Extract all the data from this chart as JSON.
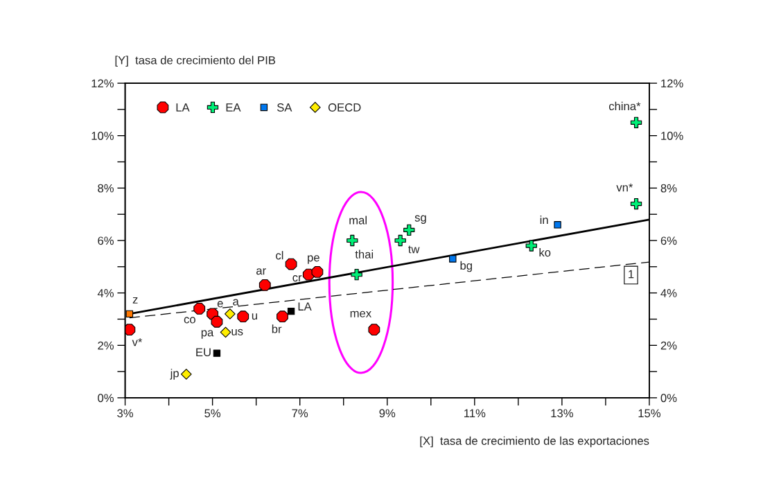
{
  "chart_data": {
    "type": "scatter",
    "xlabel": "[X]  tasa de crecimiento de las exportaciones",
    "ylabel": "[Y]  tasa de crecimiento del PIB",
    "xlim": [
      3,
      15
    ],
    "ylim": [
      0,
      12
    ],
    "y2lim": [
      0,
      12
    ],
    "xticks": [
      {
        "value": 3,
        "label": "3%"
      },
      {
        "value": 4,
        "label": null
      },
      {
        "value": 5,
        "label": "5%"
      },
      {
        "value": 6,
        "label": null
      },
      {
        "value": 7,
        "label": "7%"
      },
      {
        "value": 8,
        "label": null
      },
      {
        "value": 9,
        "label": "9%"
      },
      {
        "value": 10,
        "label": null
      },
      {
        "value": 11,
        "label": "11%"
      },
      {
        "value": 12,
        "label": null
      },
      {
        "value": 13,
        "label": "13%"
      },
      {
        "value": 14,
        "label": null
      },
      {
        "value": 15,
        "label": "15%"
      }
    ],
    "yticks": [
      {
        "value": 0,
        "label": "0%"
      },
      {
        "value": 1,
        "label": null
      },
      {
        "value": 2,
        "label": "2%"
      },
      {
        "value": 3,
        "label": null
      },
      {
        "value": 4,
        "label": "4%"
      },
      {
        "value": 5,
        "label": null
      },
      {
        "value": 6,
        "label": "6%"
      },
      {
        "value": 7,
        "label": null
      },
      {
        "value": 8,
        "label": "8%"
      },
      {
        "value": 9,
        "label": null
      },
      {
        "value": 10,
        "label": "10%"
      },
      {
        "value": 11,
        "label": null
      },
      {
        "value": 12,
        "label": "12%"
      }
    ],
    "y2ticks": [
      {
        "value": 0,
        "label": "0%"
      },
      {
        "value": 1,
        "label": null
      },
      {
        "value": 2,
        "label": "2%"
      },
      {
        "value": 3,
        "label": null
      },
      {
        "value": 4,
        "label": "4%"
      },
      {
        "value": 5,
        "label": null
      },
      {
        "value": 6,
        "label": "6%"
      },
      {
        "value": 7,
        "label": null
      },
      {
        "value": 8,
        "label": "8%"
      },
      {
        "value": 9,
        "label": null
      },
      {
        "value": 10,
        "label": "10%"
      },
      {
        "value": 11,
        "label": null
      },
      {
        "value": 12,
        "label": "12%"
      }
    ],
    "grid": false,
    "legend": "top left",
    "series": [
      {
        "name": "LA",
        "color": "#ff0000",
        "marker": "circle",
        "x": [
          3.1,
          4.7,
          5.0,
          5.1,
          5.7,
          6.2,
          6.8,
          7.2,
          7.4,
          6.6,
          8.7
        ],
        "values": [
          2.6,
          3.4,
          3.2,
          2.9,
          3.1,
          4.3,
          5.1,
          4.7,
          4.8,
          3.1,
          2.6
        ]
      },
      {
        "name": "EA",
        "color": "#00ee77",
        "marker": "cross",
        "x": [
          8.2,
          8.3,
          9.3,
          9.5,
          12.3,
          14.7,
          14.7
        ],
        "values": [
          6.0,
          4.7,
          6.0,
          6.4,
          5.8,
          7.4,
          10.5
        ]
      },
      {
        "name": "SA",
        "color": "#0077ee",
        "marker": "square",
        "x": [
          12.9,
          10.5
        ],
        "values": [
          6.6,
          5.3
        ]
      },
      {
        "name": "OECD",
        "color": "#ffee00",
        "marker": "diamond",
        "x": [
          5.4,
          5.3,
          4.4
        ],
        "values": [
          3.2,
          2.5,
          0.9
        ]
      },
      {
        "color": "#ff7700",
        "marker": "square",
        "x": [
          3.1
        ],
        "values": [
          3.2
        ]
      },
      {
        "color": "#000000",
        "marker": "square",
        "x": [
          6.8,
          5.1
        ],
        "values": [
          3.3,
          1.7
        ]
      },
      {
        "type": "line",
        "color": "#000000",
        "line_style": "solid",
        "marker": "none",
        "x": [
          3.1,
          15
        ],
        "values": [
          3.2,
          6.8
        ]
      },
      {
        "type": "line",
        "color": "#000000",
        "line_style": "dashed",
        "marker": "none",
        "x": [
          3.1,
          15
        ],
        "values": [
          3.05,
          5.18
        ]
      }
    ],
    "annotations": [
      {
        "text": "v*",
        "x": 3.1,
        "y": 2.6
      },
      {
        "text": "co",
        "x": 4.7,
        "y": 3.4
      },
      {
        "text": "e",
        "x": 5.0,
        "y": 3.2
      },
      {
        "text": "pa",
        "x": 5.1,
        "y": 2.9
      },
      {
        "text": "u",
        "x": 5.7,
        "y": 3.1
      },
      {
        "text": "ar",
        "x": 6.2,
        "y": 4.3
      },
      {
        "text": "cl",
        "x": 6.8,
        "y": 5.1
      },
      {
        "text": "cr",
        "x": 7.2,
        "y": 4.7
      },
      {
        "text": "pe",
        "x": 7.4,
        "y": 4.8
      },
      {
        "text": "br",
        "x": 6.6,
        "y": 3.1
      },
      {
        "text": "mex",
        "x": 8.7,
        "y": 2.6
      },
      {
        "text": "mal",
        "x": 8.2,
        "y": 6.0
      },
      {
        "text": "thai",
        "x": 8.3,
        "y": 4.7
      },
      {
        "text": "tw",
        "x": 9.3,
        "y": 6.0
      },
      {
        "text": "sg",
        "x": 9.5,
        "y": 6.4
      },
      {
        "text": "ko",
        "x": 12.3,
        "y": 5.8
      },
      {
        "text": "vn*",
        "x": 14.7,
        "y": 7.4
      },
      {
        "text": "china*",
        "x": 14.7,
        "y": 10.5
      },
      {
        "text": "in",
        "x": 12.9,
        "y": 6.6
      },
      {
        "text": "bg",
        "x": 10.5,
        "y": 5.3
      },
      {
        "text": "a",
        "x": 5.4,
        "y": 3.2
      },
      {
        "text": "us",
        "x": 5.3,
        "y": 2.5
      },
      {
        "text": "jp",
        "x": 4.4,
        "y": 0.9
      },
      {
        "text": "z",
        "x": 3.1,
        "y": 3.2
      },
      {
        "text": "LA",
        "x": 6.8,
        "y": 3.3
      },
      {
        "text": "EU",
        "x": 5.1,
        "y": 1.7
      },
      "1"
    ]
  }
}
